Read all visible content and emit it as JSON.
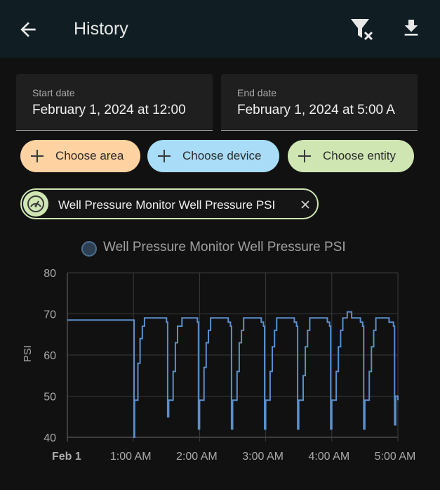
{
  "header": {
    "title": "History"
  },
  "start_date": {
    "label": "Start date",
    "value": "February 1, 2024 at 12:00"
  },
  "end_date": {
    "label": "End date",
    "value": "February 1, 2024 at 5:00 A"
  },
  "pickers": {
    "area_label": "Choose area",
    "device_label": "Choose device",
    "entity_label": "Choose entity"
  },
  "selected_entity": {
    "name": "Well Pressure Monitor Well Pressure PSI",
    "icon": "gauge-icon"
  },
  "colors": {
    "app_bar": "#101e24",
    "area_pill": "#ffd2a1",
    "device_pill": "#a8dcf7",
    "entity_pill": "#cfe6b3",
    "series_line": "#5a8fcb"
  },
  "chart_data": {
    "type": "line",
    "ylabel": "PSI",
    "xlabel": "",
    "ylim": [
      40,
      80
    ],
    "yticks": [
      "40",
      "50",
      "60",
      "70",
      "80"
    ],
    "xticks": [
      "Feb 1",
      "1:00 AM",
      "2:00 AM",
      "3:00 AM",
      "4:00 AM",
      "5:00 AM"
    ],
    "grid": true,
    "legend_position": "top",
    "series": [
      {
        "name": "Well Pressure Monitor Well Pressure PSI",
        "x_minutes": [
          0,
          10,
          20,
          30,
          40,
          50,
          60,
          60.5,
          61,
          62,
          64,
          66,
          68,
          70,
          74,
          78,
          82,
          86,
          90,
          91,
          92,
          94,
          96,
          98,
          100,
          104,
          108,
          112,
          116,
          118,
          119,
          120,
          122,
          124,
          126,
          128,
          130,
          134,
          138,
          142,
          146,
          148,
          149,
          150,
          152,
          154,
          156,
          158,
          160,
          164,
          168,
          172,
          176,
          178,
          179,
          180,
          182,
          184,
          186,
          188,
          190,
          194,
          198,
          202,
          206,
          208,
          209,
          210,
          212,
          214,
          216,
          218,
          220,
          224,
          228,
          232,
          236,
          238,
          239,
          240,
          242,
          244,
          246,
          248,
          250,
          254,
          258,
          262,
          266,
          268,
          269,
          270,
          272,
          274,
          276,
          278,
          280,
          284,
          288,
          292,
          296,
          297,
          298,
          300
        ],
        "values": [
          68.5,
          68.5,
          68.5,
          68.5,
          68.5,
          68.5,
          68.5,
          40,
          49,
          49,
          58,
          64,
          67,
          69,
          69,
          69,
          69,
          69,
          68,
          45,
          49,
          49,
          56,
          63,
          67,
          69,
          69,
          69,
          69,
          68,
          42,
          49,
          49,
          57,
          63,
          66,
          69,
          69,
          69,
          69,
          68,
          67,
          42,
          49,
          49,
          56,
          63,
          66,
          69,
          69,
          69,
          69,
          68,
          67,
          42,
          49,
          49,
          56,
          62,
          66,
          69,
          69,
          69,
          69,
          68,
          67,
          42,
          49,
          49,
          55,
          62,
          66,
          69,
          69,
          69,
          69,
          68,
          67,
          42,
          49,
          49,
          56,
          62,
          66,
          69,
          70.5,
          69,
          69,
          68,
          67,
          42,
          49,
          49,
          56,
          62,
          66,
          69,
          69,
          69,
          68,
          67,
          43,
          50,
          49
        ]
      }
    ]
  }
}
